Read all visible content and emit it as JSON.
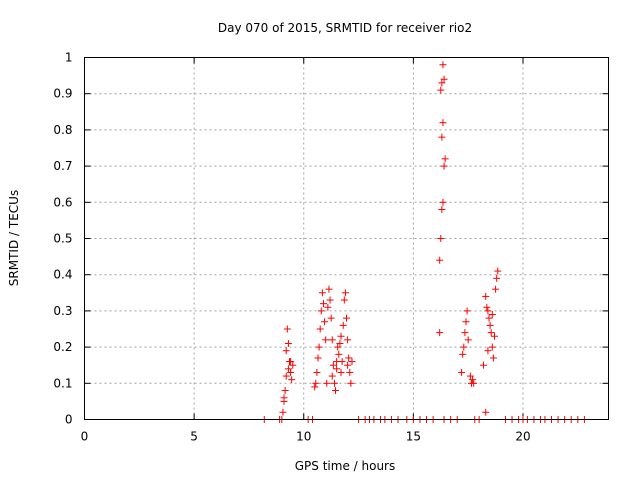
{
  "chart_data": {
    "type": "scatter",
    "title": "Day 070 of 2015, SRMTID for receiver rio2",
    "xlabel": "GPS time / hours",
    "ylabel": "SRMTID / TECUs",
    "xlim": [
      0,
      23.9
    ],
    "ylim": [
      0,
      1
    ],
    "xticks": [
      0,
      5,
      10,
      15,
      20
    ],
    "yticks": [
      0,
      0.1,
      0.2,
      0.3,
      0.4,
      0.5,
      0.6,
      0.7,
      0.8,
      0.9,
      1
    ],
    "xtick_labels": [
      "0",
      "5",
      "10",
      "15",
      "20"
    ],
    "ytick_labels": [
      "0",
      "0.1",
      "0.2",
      "0.3",
      "0.4",
      "0.5",
      "0.6",
      "0.7",
      "0.8",
      "0.9",
      "1"
    ],
    "grid": true,
    "marker": "+",
    "marker_color": "#ff0000",
    "series": [
      {
        "name": "SRMTID",
        "points": [
          [
            8.2,
            0
          ],
          [
            8.9,
            0
          ],
          [
            9.0,
            0
          ],
          [
            9.05,
            0.02
          ],
          [
            9.1,
            0.05
          ],
          [
            9.15,
            0.08
          ],
          [
            9.2,
            0.12
          ],
          [
            9.25,
            0.25
          ],
          [
            9.3,
            0.21
          ],
          [
            9.35,
            0.16
          ],
          [
            9.4,
            0.13
          ],
          [
            9.45,
            0.11
          ],
          [
            9.5,
            0.15
          ],
          [
            9.1,
            0.06
          ],
          [
            9.2,
            0.19
          ],
          [
            9.3,
            0.14
          ],
          [
            9.4,
            0.16
          ],
          [
            10.2,
            0
          ],
          [
            10.4,
            0
          ],
          [
            10.5,
            0.09
          ],
          [
            10.55,
            0.1
          ],
          [
            10.6,
            0.13
          ],
          [
            10.65,
            0.17
          ],
          [
            10.7,
            0.2
          ],
          [
            10.75,
            0.25
          ],
          [
            10.8,
            0.3
          ],
          [
            10.85,
            0.35
          ],
          [
            10.9,
            0.32
          ],
          [
            10.95,
            0.27
          ],
          [
            11.0,
            0.22
          ],
          [
            11.05,
            0.1
          ],
          [
            11.1,
            0.31
          ],
          [
            11.15,
            0.36
          ],
          [
            11.2,
            0.33
          ],
          [
            11.25,
            0.28
          ],
          [
            11.3,
            0.22
          ],
          [
            11.35,
            0.15
          ],
          [
            11.4,
            0.1
          ],
          [
            11.45,
            0.08
          ],
          [
            11.5,
            0.16
          ],
          [
            11.55,
            0.2
          ],
          [
            11.6,
            0.18
          ],
          [
            11.65,
            0.21
          ],
          [
            11.7,
            0.23
          ],
          [
            11.75,
            0.16
          ],
          [
            11.8,
            0.26
          ],
          [
            11.85,
            0.33
          ],
          [
            11.9,
            0.35
          ],
          [
            11.95,
            0.28
          ],
          [
            12.0,
            0.22
          ],
          [
            12.05,
            0.17
          ],
          [
            12.1,
            0.13
          ],
          [
            12.15,
            0.1
          ],
          [
            12.2,
            0.16
          ],
          [
            11.3,
            0.12
          ],
          [
            11.5,
            0.14
          ],
          [
            11.7,
            0.13
          ],
          [
            12.0,
            0.15
          ],
          [
            12.5,
            0
          ],
          [
            12.8,
            0
          ],
          [
            13.0,
            0
          ],
          [
            13.2,
            0
          ],
          [
            13.5,
            0
          ],
          [
            13.7,
            0
          ],
          [
            14.0,
            0
          ],
          [
            14.3,
            0
          ],
          [
            14.7,
            0
          ],
          [
            15.0,
            0
          ],
          [
            15.3,
            0
          ],
          [
            15.6,
            0
          ],
          [
            15.9,
            0
          ],
          [
            16.2,
            0.44
          ],
          [
            16.25,
            0.5
          ],
          [
            16.3,
            0.58
          ],
          [
            16.35,
            0.6
          ],
          [
            16.4,
            0.7
          ],
          [
            16.45,
            0.72
          ],
          [
            16.3,
            0.78
          ],
          [
            16.35,
            0.82
          ],
          [
            16.25,
            0.91
          ],
          [
            16.3,
            0.93
          ],
          [
            16.4,
            0.94
          ],
          [
            16.35,
            0.98
          ],
          [
            16.2,
            0.24
          ],
          [
            16.4,
            0
          ],
          [
            16.7,
            0
          ],
          [
            17.0,
            0
          ],
          [
            17.2,
            0.13
          ],
          [
            17.25,
            0.18
          ],
          [
            17.3,
            0.2
          ],
          [
            17.35,
            0.24
          ],
          [
            17.4,
            0.27
          ],
          [
            17.45,
            0.3
          ],
          [
            17.5,
            0.22
          ],
          [
            17.6,
            0.12
          ],
          [
            17.65,
            0.1
          ],
          [
            17.7,
            0.11
          ],
          [
            17.75,
            0.1
          ],
          [
            17.8,
            0
          ],
          [
            18.0,
            0
          ],
          [
            18.3,
            0.02
          ],
          [
            18.2,
            0.15
          ],
          [
            18.3,
            0.34
          ],
          [
            18.35,
            0.31
          ],
          [
            18.4,
            0.3
          ],
          [
            18.45,
            0.28
          ],
          [
            18.5,
            0.26
          ],
          [
            18.55,
            0.24
          ],
          [
            18.6,
            0.2
          ],
          [
            18.65,
            0.17
          ],
          [
            18.7,
            0.23
          ],
          [
            18.75,
            0.36
          ],
          [
            18.8,
            0.39
          ],
          [
            18.85,
            0.41
          ],
          [
            18.4,
            0.19
          ],
          [
            18.6,
            0.29
          ],
          [
            19.2,
            0
          ],
          [
            19.5,
            0
          ],
          [
            19.8,
            0
          ],
          [
            20.0,
            0
          ],
          [
            20.2,
            0
          ],
          [
            20.5,
            0
          ],
          [
            20.8,
            0
          ],
          [
            21.0,
            0
          ],
          [
            21.3,
            0
          ],
          [
            21.6,
            0
          ],
          [
            21.9,
            0
          ],
          [
            22.2,
            0
          ],
          [
            22.5,
            0
          ],
          [
            22.8,
            0
          ]
        ]
      }
    ]
  }
}
